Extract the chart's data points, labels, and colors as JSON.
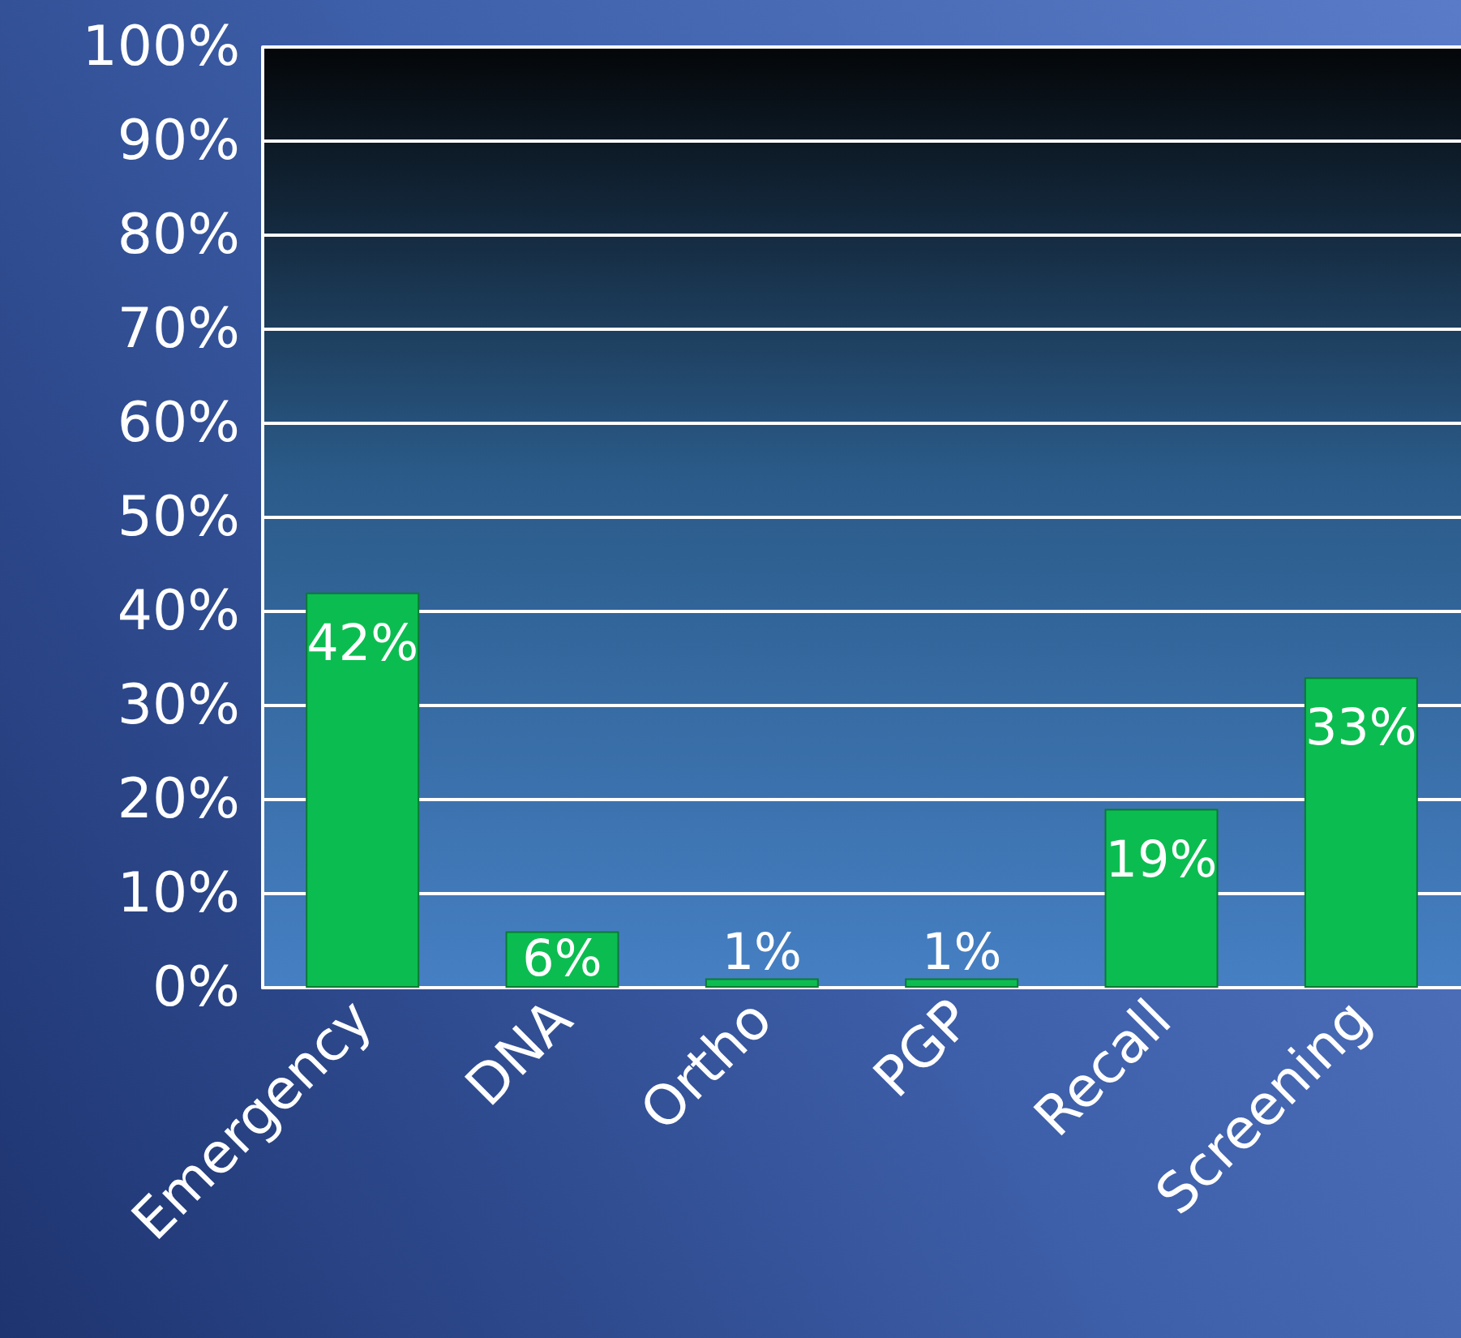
{
  "chart_data": {
    "type": "bar",
    "categories": [
      "Emergency",
      "DNA",
      "Ortho",
      "PGP",
      "Recall",
      "Screening"
    ],
    "values": [
      42,
      6,
      1,
      1,
      19,
      33
    ],
    "value_labels": [
      "42%",
      "6%",
      "1%",
      "1%",
      "19%",
      "33%"
    ],
    "color": "#0bbd50",
    "ylim": [
      0,
      100
    ],
    "yticks": [
      {
        "value": 0,
        "label": "0%"
      },
      {
        "value": 10,
        "label": "10%"
      },
      {
        "value": 20,
        "label": "20%"
      },
      {
        "value": 30,
        "label": "30%"
      },
      {
        "value": 40,
        "label": "40%"
      },
      {
        "value": 50,
        "label": "50%"
      },
      {
        "value": 60,
        "label": "60%"
      },
      {
        "value": 70,
        "label": "70%"
      },
      {
        "value": 80,
        "label": "80%"
      },
      {
        "value": 90,
        "label": "90%"
      },
      {
        "value": 100,
        "label": "100%"
      }
    ],
    "grid": "y"
  }
}
